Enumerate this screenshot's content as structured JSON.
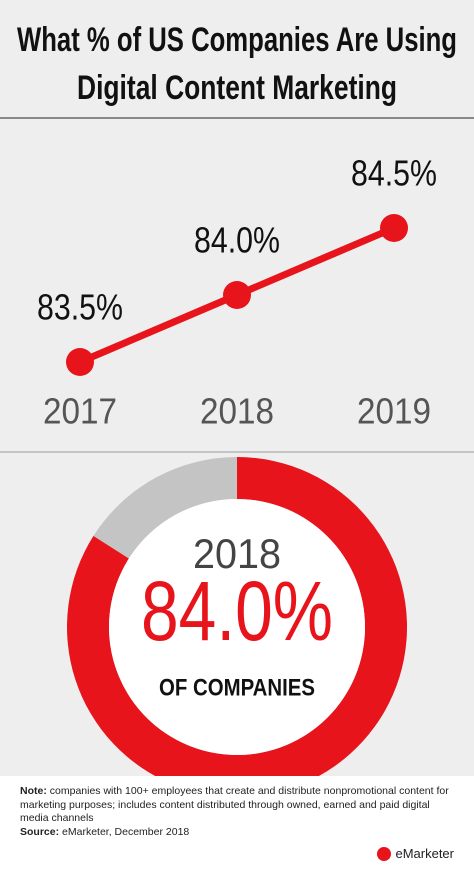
{
  "title_lines": [
    "What % of US Companies Are Using",
    "Digital Content Marketing"
  ],
  "chart_data": [
    {
      "type": "line",
      "categories": [
        "2017",
        "2018",
        "2019"
      ],
      "values": [
        83.5,
        84.0,
        84.5
      ],
      "value_labels": [
        "83.5%",
        "84.0%",
        "84.5%"
      ],
      "color": "#e8141c"
    },
    {
      "type": "pie",
      "donut": true,
      "title": "2018",
      "subtitle": "OF COMPANIES",
      "values": [
        84.0,
        16.0
      ],
      "value_labels": [
        "84.0%",
        null
      ],
      "colors": [
        "#e8141c",
        "#c4c4c4"
      ]
    }
  ],
  "footer": {
    "note_label": "Note:",
    "note": "companies with 100+ employees that create and distribute nonpromotional content for marketing purposes; includes content distributed through owned, earned and paid digital media channels",
    "source_label": "Source:",
    "source": "eMarketer, December 2018",
    "brand": "eMarketer"
  }
}
